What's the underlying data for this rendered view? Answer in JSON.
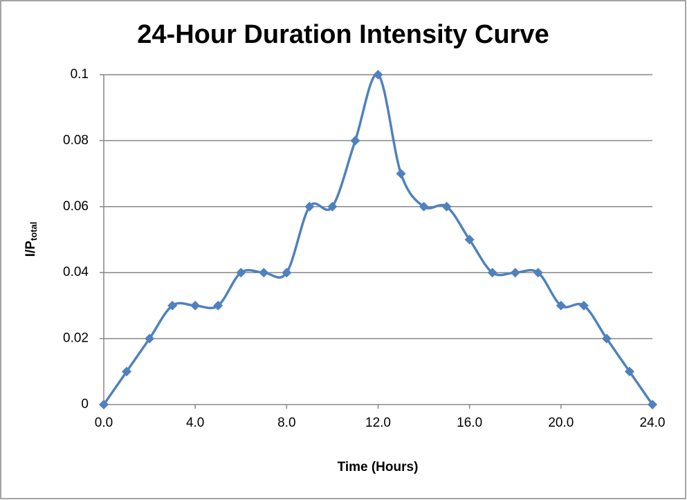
{
  "chart_data": {
    "type": "line",
    "title": "24-Hour Duration Intensity Curve",
    "xlabel": "Time (Hours)",
    "ylabel": "I/P",
    "ylabel_subscript": "total",
    "x": [
      0,
      1,
      2,
      3,
      4,
      5,
      6,
      7,
      8,
      9,
      10,
      11,
      12,
      13,
      14,
      15,
      16,
      17,
      18,
      19,
      20,
      21,
      22,
      23,
      24
    ],
    "series": [
      {
        "color": "#4f81bd",
        "values": [
          0,
          0.01,
          0.02,
          0.03,
          0.03,
          0.03,
          0.04,
          0.04,
          0.04,
          0.06,
          0.06,
          0.08,
          0.1,
          0.07,
          0.06,
          0.06,
          0.05,
          0.04,
          0.04,
          0.04,
          0.03,
          0.03,
          0.02,
          0.01,
          0
        ]
      }
    ],
    "smooth": true,
    "marker": "diamond",
    "xlim": [
      0,
      24
    ],
    "xticks": [
      {
        "value": 0,
        "label": "0.0"
      },
      {
        "value": 4,
        "label": "4.0"
      },
      {
        "value": 8,
        "label": "8.0"
      },
      {
        "value": 12,
        "label": "12.0"
      },
      {
        "value": 16,
        "label": "16.0"
      },
      {
        "value": 20,
        "label": "20.0"
      },
      {
        "value": 24,
        "label": "24.0"
      }
    ],
    "ylim": [
      0,
      0.1
    ],
    "yticks": [
      0,
      0.02,
      0.04,
      0.06,
      0.08,
      0.1
    ],
    "grid": true
  }
}
